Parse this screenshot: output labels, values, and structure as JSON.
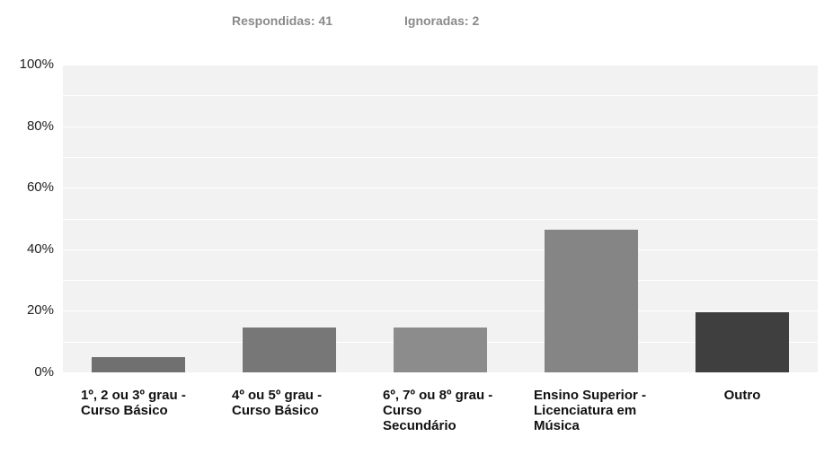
{
  "chart_data": {
    "type": "bar",
    "subtitle": [
      "Respondidas: 41",
      "Ignoradas: 2"
    ],
    "categories": [
      "1º, 2 ou 3º grau - Curso Básico",
      "4º ou 5º grau - Curso Básico",
      "6º, 7º ou 8º grau - Curso Secundário",
      "Ensino Superior - Licenciatura em Música",
      "Outro"
    ],
    "values": [
      4.9,
      14.6,
      14.6,
      46.3,
      19.5
    ],
    "colors": [
      "#707070",
      "#777777",
      "#8c8c8c",
      "#858585",
      "#3f3f3f"
    ],
    "ylim": [
      0,
      100
    ],
    "yticks": [
      {
        "value": 0,
        "label": "0%"
      },
      {
        "value": 20,
        "label": "20%"
      },
      {
        "value": 40,
        "label": "40%"
      },
      {
        "value": 60,
        "label": "60%"
      },
      {
        "value": 80,
        "label": "80%"
      },
      {
        "value": 100,
        "label": "100%"
      }
    ],
    "minor_yticks": [
      10,
      30,
      50,
      70,
      90
    ],
    "grid": true
  }
}
